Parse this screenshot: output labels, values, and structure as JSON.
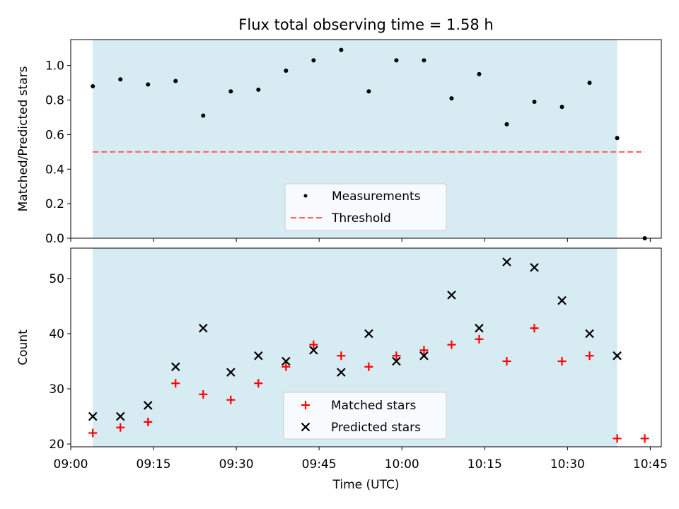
{
  "chart_data": [
    {
      "type": "scatter",
      "title": "Flux total observing time = 1.58 h",
      "xlabel": "",
      "ylabel": "Matched/Predicted stars",
      "xlim": [
        "09:00",
        "10:47"
      ],
      "ylim": [
        0.0,
        1.15
      ],
      "yticks": [
        "0.0",
        "0.2",
        "0.4",
        "0.6",
        "0.8",
        "1.0"
      ],
      "shaded_span": {
        "start": "09:04",
        "end": "10:39",
        "color": "#add8e6"
      },
      "threshold": {
        "name": "Threshold",
        "value": 0.5,
        "x_start": "09:04",
        "x_end": "10:44",
        "color": "#ff5f5f"
      },
      "legend_position": "lower center",
      "series": [
        {
          "name": "Measurements",
          "marker": "dot",
          "color": "#000000",
          "x": [
            "09:04",
            "09:09",
            "09:14",
            "09:19",
            "09:24",
            "09:29",
            "09:34",
            "09:39",
            "09:44",
            "09:49",
            "09:54",
            "09:59",
            "10:04",
            "10:09",
            "10:14",
            "10:19",
            "10:24",
            "10:29",
            "10:34",
            "10:39",
            "10:44"
          ],
          "values": [
            0.88,
            0.92,
            0.89,
            0.91,
            0.71,
            0.85,
            0.86,
            0.97,
            1.03,
            1.09,
            0.85,
            1.03,
            1.03,
            0.81,
            0.95,
            0.66,
            0.79,
            0.76,
            0.9,
            0.58,
            0.0
          ]
        }
      ]
    },
    {
      "type": "scatter",
      "title": "",
      "xlabel": "Time (UTC)",
      "ylabel": "Count",
      "xlim": [
        "09:00",
        "10:47"
      ],
      "ylim": [
        19.5,
        55.5
      ],
      "xticks": [
        "09:00",
        "09:15",
        "09:30",
        "09:45",
        "10:00",
        "10:15",
        "10:30",
        "10:45"
      ],
      "yticks": [
        "20",
        "30",
        "40",
        "50"
      ],
      "shaded_span": {
        "start": "09:04",
        "end": "10:39",
        "color": "#add8e6"
      },
      "legend_position": "lower center",
      "series": [
        {
          "name": "Matched stars",
          "marker": "plus",
          "color": "#ff0000",
          "x": [
            "09:04",
            "09:09",
            "09:14",
            "09:19",
            "09:24",
            "09:29",
            "09:34",
            "09:39",
            "09:44",
            "09:49",
            "09:54",
            "09:59",
            "10:04",
            "10:09",
            "10:14",
            "10:19",
            "10:24",
            "10:29",
            "10:34",
            "10:39",
            "10:44"
          ],
          "values": [
            22,
            23,
            24,
            31,
            29,
            28,
            31,
            34,
            38,
            36,
            34,
            36,
            37,
            38,
            39,
            35,
            41,
            35,
            36,
            21,
            21
          ]
        },
        {
          "name": "Predicted stars",
          "marker": "x",
          "color": "#000000",
          "x": [
            "09:04",
            "09:09",
            "09:14",
            "09:19",
            "09:24",
            "09:29",
            "09:34",
            "09:39",
            "09:44",
            "09:49",
            "09:54",
            "09:59",
            "10:04",
            "10:09",
            "10:14",
            "10:19",
            "10:24",
            "10:29",
            "10:34",
            "10:39"
          ],
          "values": [
            25,
            25,
            27,
            34,
            41,
            33,
            36,
            35,
            37,
            33,
            40,
            35,
            36,
            47,
            41,
            53,
            52,
            46,
            40,
            36
          ]
        }
      ]
    }
  ]
}
